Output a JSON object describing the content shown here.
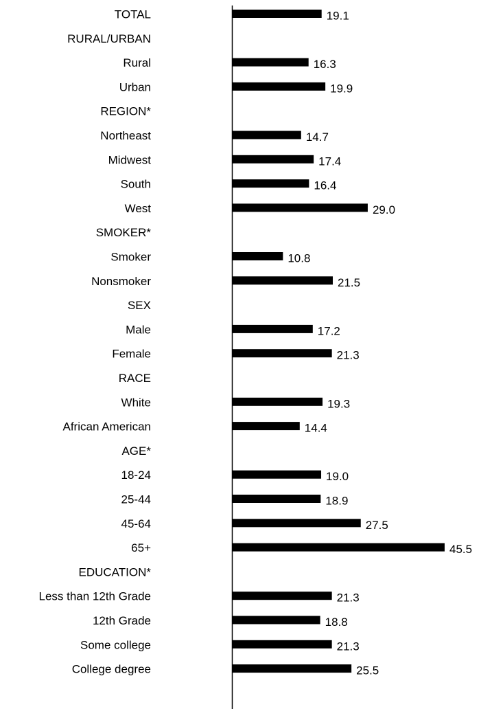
{
  "chart_data": {
    "type": "bar",
    "orientation": "horizontal",
    "title": "",
    "xlabel": "",
    "ylabel": "",
    "xlim": [
      0,
      45.5
    ],
    "grid": false,
    "bar_color": "#000000",
    "rows": [
      {
        "label": "TOTAL",
        "value": 19.1,
        "display": "19.1"
      },
      {
        "label": "RURAL/URBAN",
        "value": null,
        "display": ""
      },
      {
        "label": "Rural",
        "value": 16.3,
        "display": "16.3"
      },
      {
        "label": "Urban",
        "value": 19.9,
        "display": "19.9"
      },
      {
        "label": "REGION*",
        "value": null,
        "display": ""
      },
      {
        "label": "Northeast",
        "value": 14.7,
        "display": "14.7"
      },
      {
        "label": "Midwest",
        "value": 17.4,
        "display": "17.4"
      },
      {
        "label": "South",
        "value": 16.4,
        "display": "16.4"
      },
      {
        "label": "West",
        "value": 29.0,
        "display": "29.0"
      },
      {
        "label": "SMOKER*",
        "value": null,
        "display": ""
      },
      {
        "label": "Smoker",
        "value": 10.8,
        "display": "10.8"
      },
      {
        "label": "Nonsmoker",
        "value": 21.5,
        "display": "21.5"
      },
      {
        "label": "SEX",
        "value": null,
        "display": ""
      },
      {
        "label": "Male",
        "value": 17.2,
        "display": "17.2"
      },
      {
        "label": "Female",
        "value": 21.3,
        "display": "21.3"
      },
      {
        "label": "RACE",
        "value": null,
        "display": ""
      },
      {
        "label": "White",
        "value": 19.3,
        "display": "19.3"
      },
      {
        "label": "African American",
        "value": 14.4,
        "display": "14.4"
      },
      {
        "label": "AGE*",
        "value": null,
        "display": ""
      },
      {
        "label": "18-24",
        "value": 19.0,
        "display": "19.0"
      },
      {
        "label": "25-44",
        "value": 18.9,
        "display": "18.9"
      },
      {
        "label": "45-64",
        "value": 27.5,
        "display": "27.5"
      },
      {
        "label": "65+",
        "value": 45.5,
        "display": "45.5"
      },
      {
        "label": "EDUCATION*",
        "value": null,
        "display": ""
      },
      {
        "label": "Less than 12th Grade",
        "value": 21.3,
        "display": "21.3"
      },
      {
        "label": "12th Grade",
        "value": 18.8,
        "display": "18.8"
      },
      {
        "label": "Some college",
        "value": 21.3,
        "display": "21.3"
      },
      {
        "label": "College degree",
        "value": 25.5,
        "display": "25.5"
      }
    ]
  }
}
